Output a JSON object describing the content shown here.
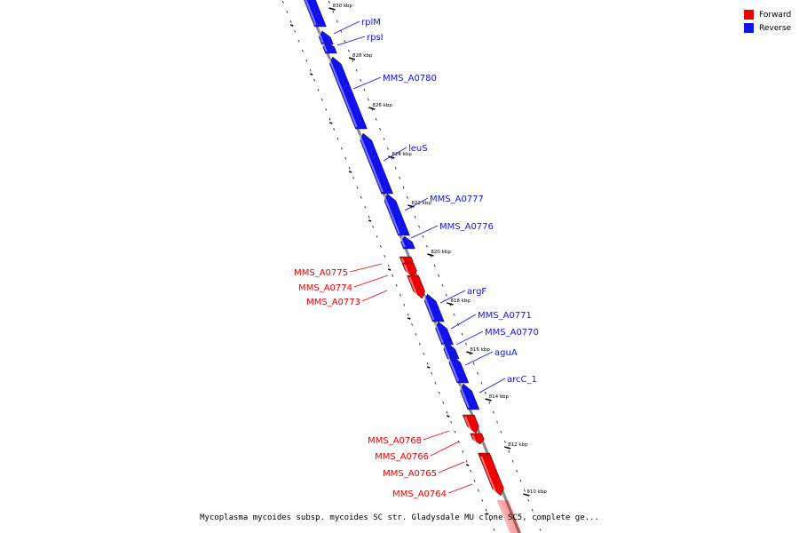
{
  "legend": [
    {
      "label": "Forward",
      "color": "#ee0000"
    },
    {
      "label": "Reverse",
      "color": "#1111ee"
    }
  ],
  "caption": "Mycoplasma mycoides subsp. mycoides SC str. Gladysdale MU clone SC5, complete ge...",
  "colors": {
    "forward": "#ee0000",
    "reverse": "#1111ee",
    "backbone": "#888888"
  },
  "ticks": [
    "830 kbp",
    "828 kbp",
    "826 kbp",
    "824 kbp",
    "822 kbp",
    "820 kbp",
    "818 kbp",
    "816 kbp",
    "814 kbp",
    "812 kbp",
    "810 kbp"
  ],
  "genes": [
    {
      "name": "",
      "strand": "reverse"
    },
    {
      "name": "rplM",
      "strand": "reverse"
    },
    {
      "name": "rpsI",
      "strand": "reverse"
    },
    {
      "name": "MMS_A0780",
      "strand": "reverse"
    },
    {
      "name": "leuS",
      "strand": "reverse"
    },
    {
      "name": "MMS_A0777",
      "strand": "reverse"
    },
    {
      "name": "MMS_A0776",
      "strand": "reverse"
    },
    {
      "name": "MMS_A0775",
      "strand": "forward"
    },
    {
      "name": "MMS_A0774",
      "strand": "forward"
    },
    {
      "name": "MMS_A0773",
      "strand": "forward"
    },
    {
      "name": "argF",
      "strand": "reverse"
    },
    {
      "name": "MMS_A0771",
      "strand": "reverse"
    },
    {
      "name": "MMS_A0770",
      "strand": "reverse"
    },
    {
      "name": "aguA",
      "strand": "reverse"
    },
    {
      "name": "arcC_1",
      "strand": "reverse"
    },
    {
      "name": "MMS_A0768",
      "strand": "forward"
    },
    {
      "name": "MMS_A0766",
      "strand": "forward"
    },
    {
      "name": "MMS_A0765",
      "strand": "forward"
    },
    {
      "name": "MMS_A0764",
      "strand": "forward"
    },
    {
      "name": "",
      "strand": "forward"
    }
  ]
}
